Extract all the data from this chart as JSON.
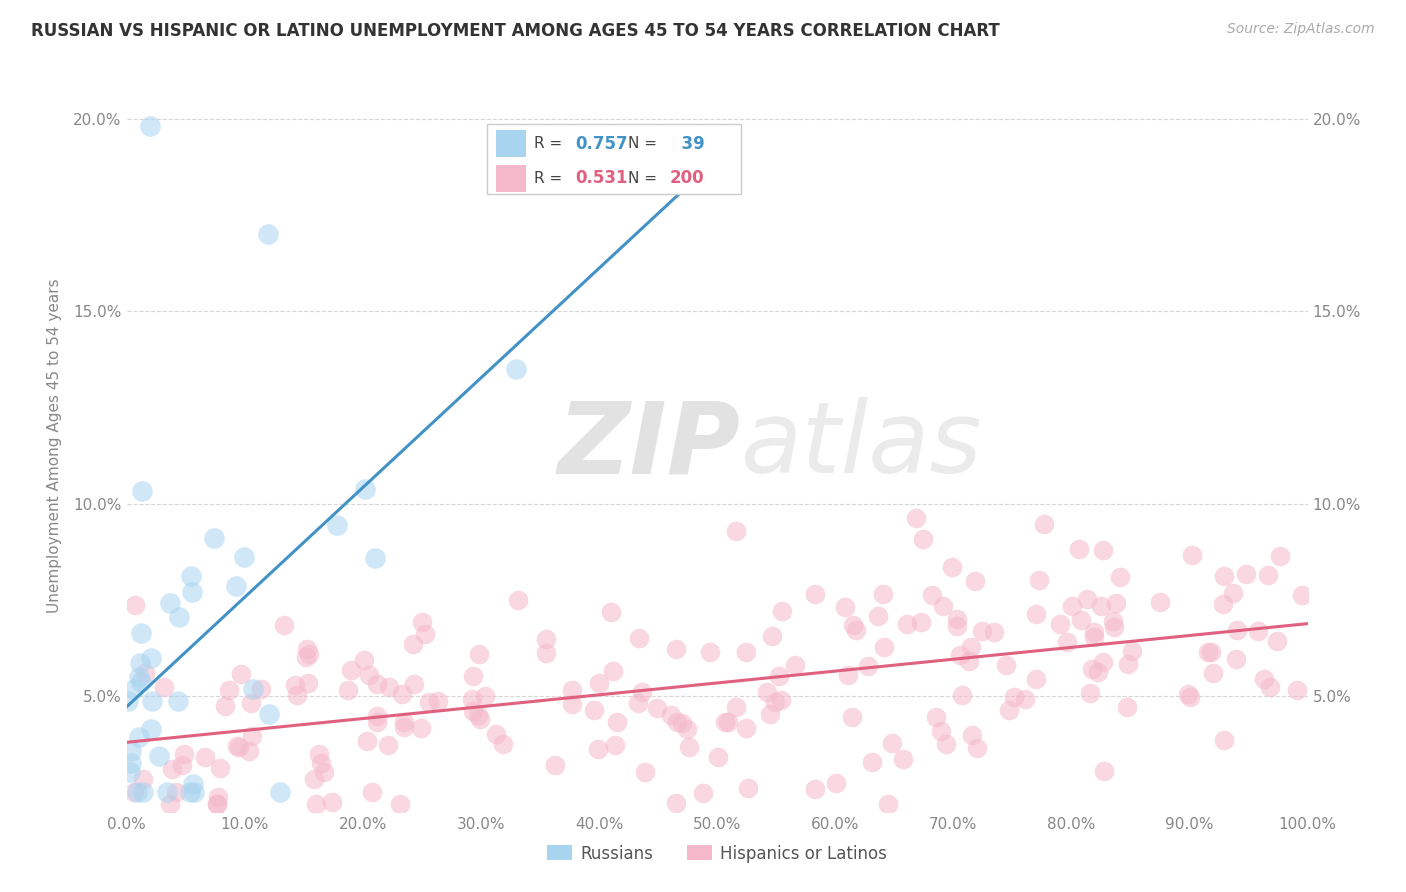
{
  "title": "RUSSIAN VS HISPANIC OR LATINO UNEMPLOYMENT AMONG AGES 45 TO 54 YEARS CORRELATION CHART",
  "source": "Source: ZipAtlas.com",
  "ylabel": "Unemployment Among Ages 45 to 54 years",
  "xlim": [
    0,
    100
  ],
  "ylim": [
    2.0,
    21.0
  ],
  "yticks": [
    5,
    10,
    15,
    20
  ],
  "ytick_labels": [
    "5.0%",
    "10.0%",
    "15.0%",
    "20.0%"
  ],
  "xticks": [
    0,
    10,
    20,
    30,
    40,
    50,
    60,
    70,
    80,
    90,
    100
  ],
  "xtick_labels": [
    "0.0%",
    "10.0%",
    "20.0%",
    "30.0%",
    "40.0%",
    "50.0%",
    "60.0%",
    "70.0%",
    "80.0%",
    "90.0%",
    "100.0%"
  ],
  "legend_russian": "Russians",
  "legend_hispanic": "Hispanics or Latinos",
  "R_russian": 0.757,
  "N_russian": 39,
  "R_hispanic": 0.531,
  "N_hispanic": 200,
  "russian_color": "#a8d4f0",
  "hispanic_color": "#f5b8cb",
  "russian_line_color": "#4292c6",
  "hispanic_line_color": "#e06080",
  "watermark_zip": "ZIP",
  "watermark_atlas": "atlas",
  "background_color": "#ffffff",
  "grid_color": "#cccccc",
  "russian_seed": 42,
  "hispanic_seed": 99
}
